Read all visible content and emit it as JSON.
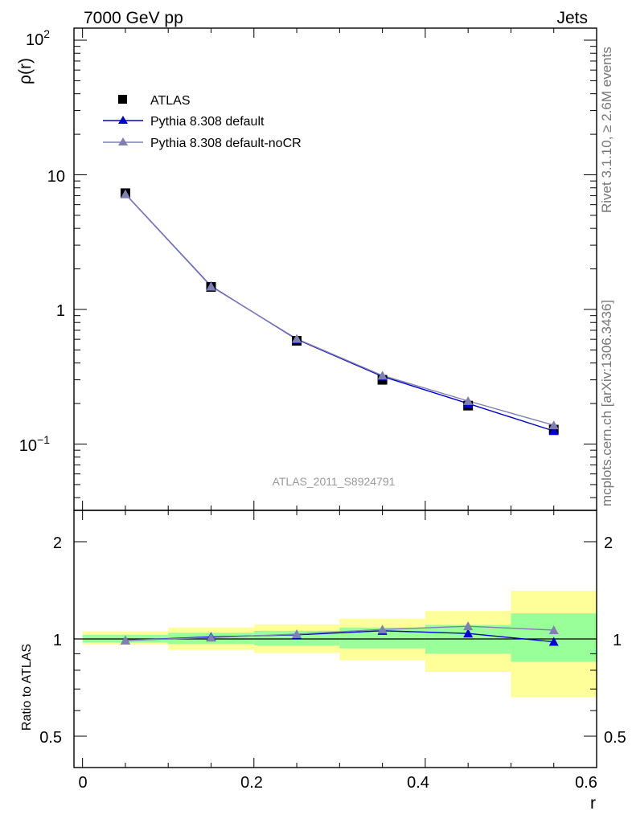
{
  "header": {
    "left_title": "7000 GeV pp",
    "right_title": "Jets"
  },
  "side_labels": {
    "rivet": "Rivet 3.1.10, ≥ 2.6M events",
    "mcplots": "mcplots.cern.ch [arXiv:1306.3436]"
  },
  "analysis_tag": "ATLAS_2011_S8924791",
  "colors": {
    "data": "#000000",
    "pythia_default": "#0000cc",
    "pythia_nocr": "#8080b0",
    "band_inner": "#99ff99",
    "band_outer": "#ffff99"
  },
  "chart_data": [
    {
      "type": "line",
      "panel": "main",
      "ylabel": "ρ(r)",
      "yscale": "log",
      "ylim": [
        0.035,
        120
      ],
      "xlim": [
        -0.01,
        0.6
      ],
      "y_tick_labels": [
        "10",
        "1"
      ],
      "legend_placement": "top-left",
      "x": [
        0.05,
        0.15,
        0.25,
        0.35,
        0.45,
        0.55
      ],
      "series": [
        {
          "name": "ATLAS",
          "marker": "square",
          "values": [
            7.3,
            1.47,
            0.585,
            0.3,
            0.193,
            0.128
          ]
        },
        {
          "name": "Pythia 8.308 default",
          "marker": "triangle",
          "values": [
            7.2,
            1.49,
            0.6,
            0.318,
            0.2,
            0.125
          ]
        },
        {
          "name": "Pythia 8.308 default-noCR",
          "marker": "triangle",
          "values": [
            7.18,
            1.48,
            0.605,
            0.323,
            0.209,
            0.138
          ]
        }
      ]
    },
    {
      "type": "line",
      "panel": "ratio",
      "ylabel": "Ratio to ATLAS",
      "xlabel": "r",
      "yscale": "log",
      "ylim": [
        0.4,
        2.3
      ],
      "xlim": [
        -0.01,
        0.6
      ],
      "x_tick_labels": [
        "0",
        "0.2",
        "0.4",
        "0.6"
      ],
      "y_tick_labels": [
        "2",
        "1",
        "0.5"
      ],
      "reference_line": 1,
      "bands": [
        {
          "xlo": 0.0,
          "xhi": 0.1,
          "inner": [
            0.975,
            1.03
          ],
          "outer": [
            0.96,
            1.055
          ]
        },
        {
          "xlo": 0.1,
          "xhi": 0.2,
          "inner": [
            0.965,
            1.045
          ],
          "outer": [
            0.925,
            1.085
          ]
        },
        {
          "xlo": 0.2,
          "xhi": 0.3,
          "inner": [
            0.955,
            1.06
          ],
          "outer": [
            0.905,
            1.11
          ]
        },
        {
          "xlo": 0.3,
          "xhi": 0.4,
          "inner": [
            0.935,
            1.085
          ],
          "outer": [
            0.86,
            1.155
          ]
        },
        {
          "xlo": 0.4,
          "xhi": 0.5,
          "inner": [
            0.9,
            1.105
          ],
          "outer": [
            0.79,
            1.22
          ]
        },
        {
          "xlo": 0.5,
          "xhi": 0.6,
          "inner": [
            0.85,
            1.2
          ],
          "outer": [
            0.66,
            1.41
          ]
        }
      ],
      "x": [
        0.05,
        0.15,
        0.25,
        0.35,
        0.45,
        0.55
      ],
      "series": [
        {
          "name": "Pythia 8.308 default",
          "marker": "triangle",
          "values": [
            0.99,
            1.015,
            1.03,
            1.06,
            1.04,
            0.98
          ]
        },
        {
          "name": "Pythia 8.308 default-noCR",
          "marker": "triangle",
          "values": [
            0.99,
            1.01,
            1.035,
            1.07,
            1.095,
            1.065
          ]
        }
      ]
    }
  ]
}
